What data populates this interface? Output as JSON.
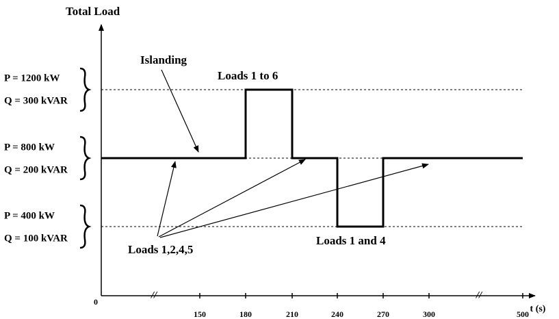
{
  "axes": {
    "y_label": "Total Load",
    "x_label": "t (s)",
    "x_ticks": [
      "0",
      "//",
      "150",
      "180",
      "210",
      "240",
      "270",
      "300",
      "//",
      "500"
    ]
  },
  "levels": [
    {
      "p": "P = 1200 kW",
      "q": "Q = 300 kVAR"
    },
    {
      "p": "P = 800 kW",
      "q": "Q = 200 kVAR"
    },
    {
      "p": "P = 400 kW",
      "q": "Q = 100 kVAR"
    }
  ],
  "annotations": {
    "islanding": "Islanding",
    "loads_1_to_6": "Loads 1 to 6",
    "loads_1_and_4": "Loads 1 and 4",
    "loads_1_2_4_5": "Loads 1,2,4,5"
  }
}
